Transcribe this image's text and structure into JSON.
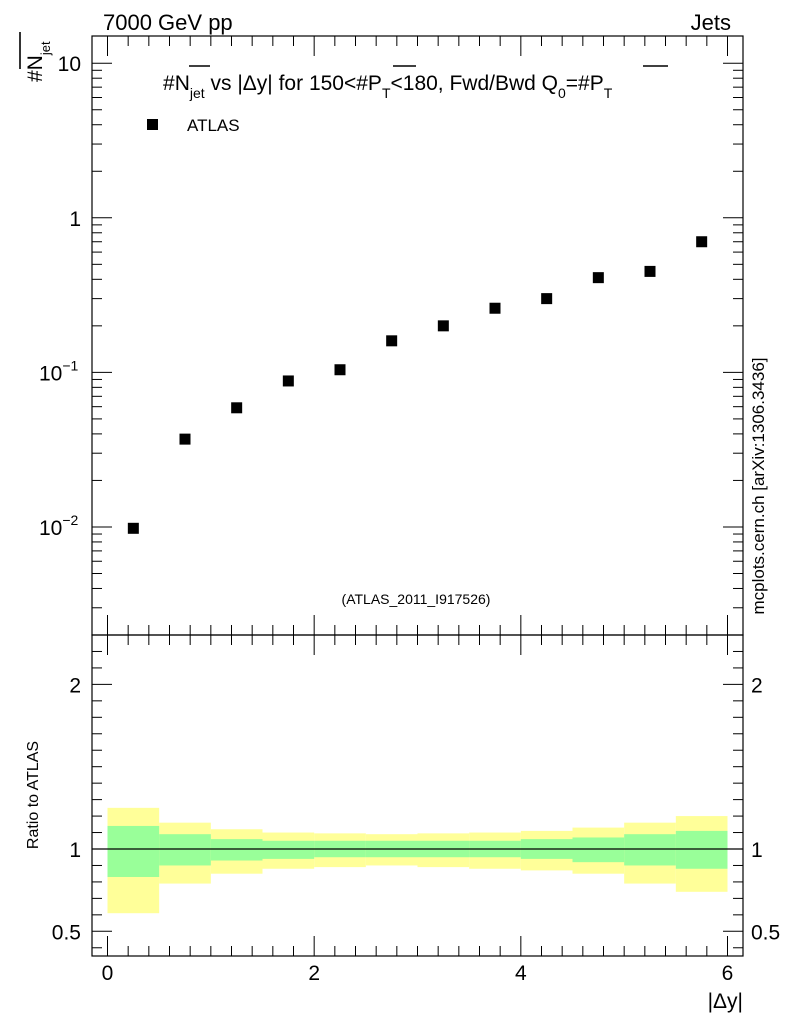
{
  "header": {
    "energy_label": "7000 GeV pp",
    "category_label": "Jets",
    "side_label": "mcplots.cern.ch [arXiv:1306.3436]",
    "analysis_label": "(ATLAS_2011_I917526)"
  },
  "colors": {
    "inner_band": "#99ff99",
    "outer_band": "#ffff99",
    "marker": "#000000",
    "analysis_text": "#999999",
    "side_text": "#808080"
  },
  "chart_data": [
    {
      "type": "scatter",
      "title_parts": {
        "t1": "#",
        "t2": "N",
        "t3": "jet",
        "t4": " vs |Δy|  for 150<#",
        "t5": "P",
        "t6": "T",
        "t7": "<180, Fwd/Bwd Q",
        "t8": "0",
        "t9": "=#",
        "t10": "P",
        "t11": "T"
      },
      "ylabel_parts": {
        "hash": "#",
        "n": "N",
        "sub": "jet"
      },
      "yscale": "log",
      "ylim": [
        0.002,
        15
      ],
      "xlim": [
        -0.15,
        6.15
      ],
      "y_ticks": [
        {
          "value": 10,
          "label": "10"
        },
        {
          "value": 1,
          "label": "1"
        },
        {
          "value": 0.1,
          "base": "10",
          "exp": "−1"
        },
        {
          "value": 0.01,
          "base": "10",
          "exp": "−2"
        }
      ],
      "legend": [
        {
          "name": "ATLAS",
          "marker": "square"
        }
      ],
      "series": [
        {
          "name": "ATLAS",
          "x": [
            0.25,
            0.75,
            1.25,
            1.75,
            2.25,
            2.75,
            3.25,
            3.75,
            4.25,
            4.75,
            5.25,
            5.75
          ],
          "y": [
            0.0098,
            0.037,
            0.059,
            0.088,
            0.104,
            0.16,
            0.2,
            0.26,
            0.3,
            0.41,
            0.45,
            0.7
          ]
        }
      ]
    },
    {
      "type": "area",
      "ylabel": "Ratio to ATLAS",
      "xlabel": "|Δy|",
      "ylim": [
        0.35,
        2.3
      ],
      "xlim": [
        -0.15,
        6.15
      ],
      "x_ticks": [
        {
          "value": 0,
          "label": "0"
        },
        {
          "value": 2,
          "label": "2"
        },
        {
          "value": 4,
          "label": "4"
        },
        {
          "value": 6,
          "label": "6"
        }
      ],
      "y_ticks": [
        {
          "value": 0.5,
          "label": "0.5"
        },
        {
          "value": 1,
          "label": "1"
        },
        {
          "value": 2,
          "label": "2"
        }
      ],
      "reference_line": 1,
      "bins": [
        {
          "lo": 0.0,
          "hi": 0.5,
          "inner": [
            0.83,
            1.14
          ],
          "outer": [
            0.61,
            1.25
          ]
        },
        {
          "lo": 0.5,
          "hi": 1.0,
          "inner": [
            0.9,
            1.09
          ],
          "outer": [
            0.79,
            1.16
          ]
        },
        {
          "lo": 1.0,
          "hi": 1.5,
          "inner": [
            0.93,
            1.06
          ],
          "outer": [
            0.85,
            1.12
          ]
        },
        {
          "lo": 1.5,
          "hi": 2.0,
          "inner": [
            0.94,
            1.05
          ],
          "outer": [
            0.88,
            1.1
          ]
        },
        {
          "lo": 2.0,
          "hi": 2.5,
          "inner": [
            0.95,
            1.05
          ],
          "outer": [
            0.89,
            1.095
          ]
        },
        {
          "lo": 2.5,
          "hi": 3.0,
          "inner": [
            0.95,
            1.05
          ],
          "outer": [
            0.9,
            1.09
          ]
        },
        {
          "lo": 3.0,
          "hi": 3.5,
          "inner": [
            0.95,
            1.05
          ],
          "outer": [
            0.89,
            1.095
          ]
        },
        {
          "lo": 3.5,
          "hi": 4.0,
          "inner": [
            0.95,
            1.05
          ],
          "outer": [
            0.88,
            1.1
          ]
        },
        {
          "lo": 4.0,
          "hi": 4.5,
          "inner": [
            0.94,
            1.06
          ],
          "outer": [
            0.87,
            1.11
          ]
        },
        {
          "lo": 4.5,
          "hi": 5.0,
          "inner": [
            0.92,
            1.07
          ],
          "outer": [
            0.85,
            1.13
          ]
        },
        {
          "lo": 5.0,
          "hi": 5.5,
          "inner": [
            0.9,
            1.09
          ],
          "outer": [
            0.79,
            1.16
          ]
        },
        {
          "lo": 5.5,
          "hi": 6.0,
          "inner": [
            0.88,
            1.11
          ],
          "outer": [
            0.74,
            1.2
          ]
        }
      ]
    }
  ]
}
